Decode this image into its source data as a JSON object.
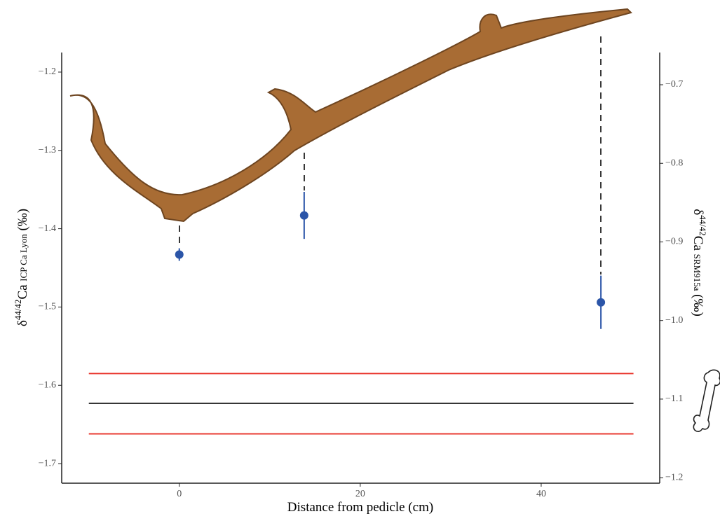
{
  "chart_data": {
    "type": "scatter",
    "x_label": "Distance from pedicle (cm)",
    "y_label": {
      "prefix": "δ",
      "sup": "44/42",
      "main": "Ca ",
      "sub": "ICP Ca Lyon",
      "suffix": " (‰)"
    },
    "y2_label": {
      "prefix": "δ",
      "sup": "44/42",
      "main": "Ca ",
      "sub": "SRM915a",
      "suffix": " (‰)"
    },
    "xlim": [
      -13,
      53.1
    ],
    "xticks": [
      0,
      20,
      40
    ],
    "ylim": [
      -1.725,
      -1.175
    ],
    "yticks": [
      {
        "value": -1.2,
        "label": "−1.2"
      },
      {
        "value": -1.3,
        "label": "−1.3"
      },
      {
        "value": -1.4,
        "label": "−1.4"
      },
      {
        "value": -1.5,
        "label": "−1.5"
      },
      {
        "value": -1.6,
        "label": "−1.6"
      },
      {
        "value": -1.7,
        "label": "−1.7"
      }
    ],
    "y2lim": [
      -1.207,
      -0.659
    ],
    "y2ticks": [
      {
        "value": -0.7,
        "label": "−0.7"
      },
      {
        "value": -0.8,
        "label": "−0.8"
      },
      {
        "value": -0.9,
        "label": "−0.9"
      },
      {
        "value": -1.0,
        "label": "−1.0"
      },
      {
        "value": -1.1,
        "label": "−1.1"
      },
      {
        "value": -1.2,
        "label": "−1.2"
      }
    ],
    "series": [
      {
        "color": "#2b55a8",
        "x": [
          0,
          13.8,
          46.6
        ],
        "values": [
          -1.433,
          -1.383,
          -1.494
        ],
        "errors": [
          0.008,
          0.03,
          0.034
        ]
      }
    ],
    "reference_lines": [
      {
        "value": -1.585,
        "color": "#e8332a"
      },
      {
        "value": -1.623,
        "color": "#222222"
      },
      {
        "value": -1.662,
        "color": "#e8332a"
      }
    ],
    "reference_xrange": [
      -10,
      50.2
    ]
  }
}
